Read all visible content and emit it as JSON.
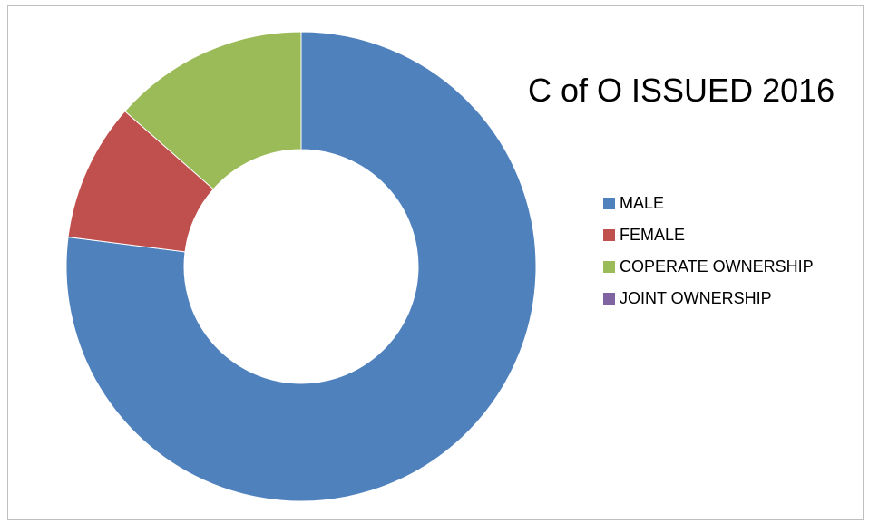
{
  "chart_data": {
    "type": "pie",
    "variant": "doughnut",
    "title": "C of O ISSUED 2016",
    "legend_position": "right",
    "series": [
      {
        "name": "MALE",
        "value": 77,
        "color": "#4f81bd"
      },
      {
        "name": "FEMALE",
        "value": 9.5,
        "color": "#c0504d"
      },
      {
        "name": "COPERATE OWNERSHIP",
        "value": 13.5,
        "color": "#9bbb59"
      },
      {
        "name": "JOINT OWNERSHIP",
        "value": 0,
        "color": "#8064a2"
      }
    ]
  }
}
